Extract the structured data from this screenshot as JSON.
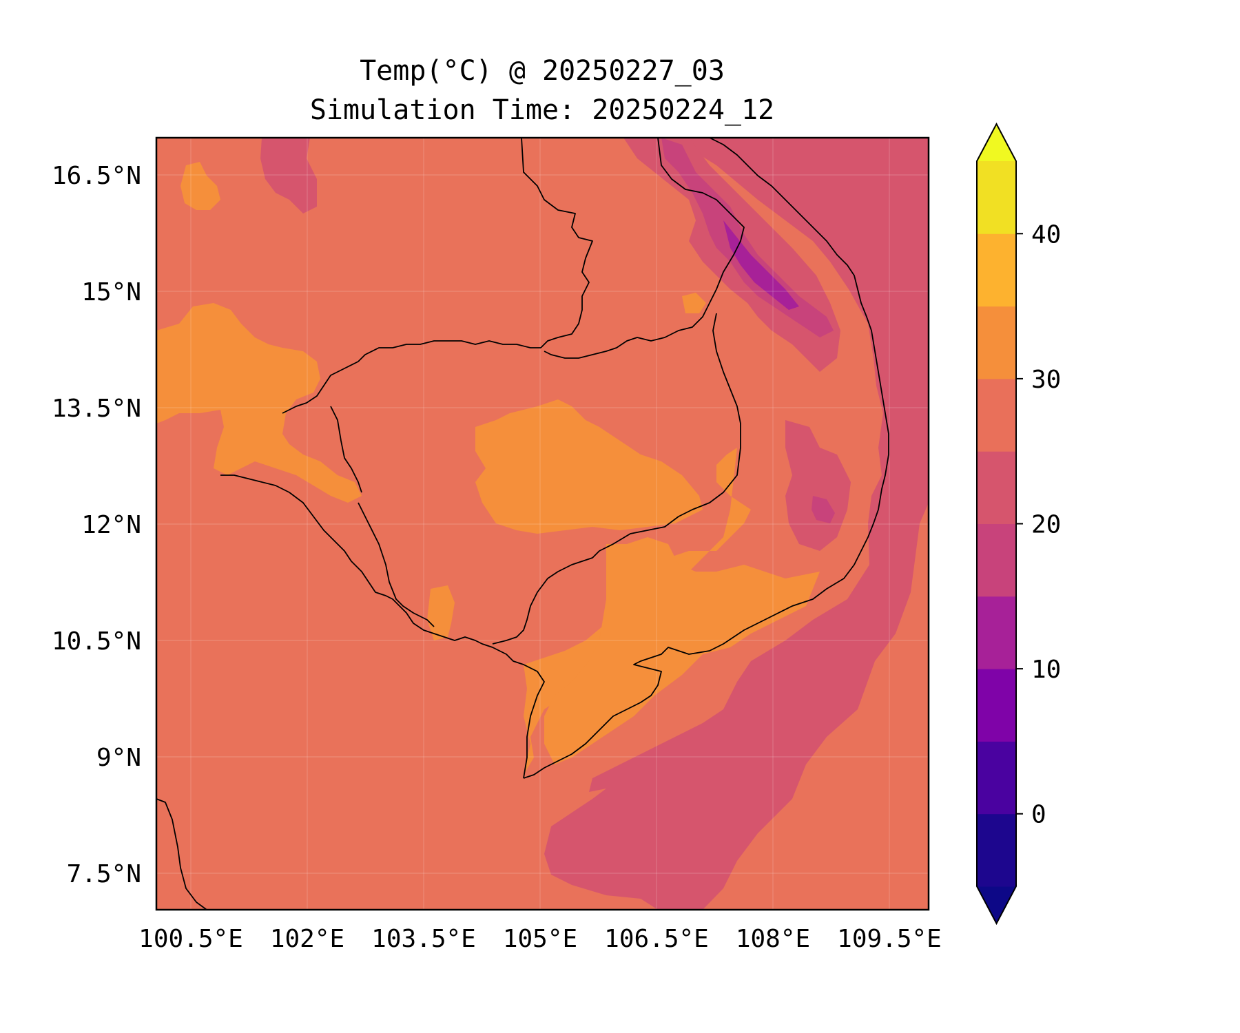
{
  "title": {
    "line1": "Temp(°C) @ 20250227_03",
    "line2": "Simulation Time: 20250224_12"
  },
  "chart_data": {
    "type": "heatmap",
    "variable": "Temp(°C)",
    "x_ticks": [
      "100.5°E",
      "102°E",
      "103.5°E",
      "105°E",
      "106.5°E",
      "108°E",
      "109.5°E"
    ],
    "x_tick_values": [
      100.5,
      102,
      103.5,
      105,
      106.5,
      108,
      109.5
    ],
    "y_ticks": [
      "16.5°N",
      "15°N",
      "13.5°N",
      "12°N",
      "10.5°N",
      "9°N",
      "7.5°N"
    ],
    "y_tick_values": [
      16.5,
      15,
      13.5,
      12,
      10.5,
      9,
      7.5
    ],
    "xlim": [
      100.05,
      110
    ],
    "ylim": [
      7.05,
      17
    ],
    "grid": true,
    "colorbar": {
      "levels": [
        -5,
        0,
        5,
        10,
        15,
        20,
        25,
        30,
        35,
        40,
        45
      ],
      "colors": [
        "#1d068e",
        "#4a02a0",
        "#7f03a8",
        "#a72198",
        "#c8437b",
        "#d6556d",
        "#e9705a",
        "#f58f3b",
        "#fdb22f",
        "#f1e023"
      ],
      "extend": "both",
      "under_color": "#0d0887",
      "over_color": "#f0f921",
      "tick_labels": [
        "0",
        "10",
        "20",
        "30",
        "40"
      ],
      "tick_values": [
        0,
        10,
        20,
        30,
        40
      ]
    },
    "dominant_range": [
      25,
      30
    ],
    "warm_regions_range": [
      30,
      35
    ],
    "cool_sea_range": [
      20,
      25
    ],
    "highland_min_range": [
      10,
      15
    ]
  }
}
